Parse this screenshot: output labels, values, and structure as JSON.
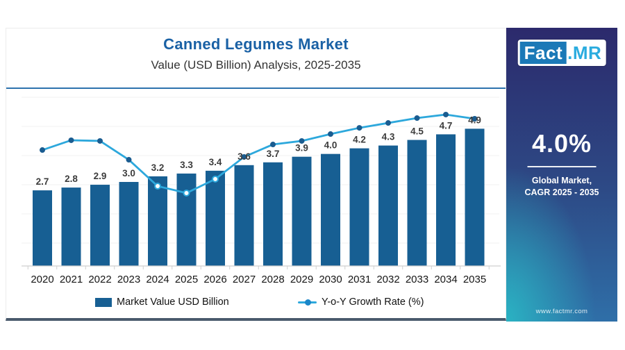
{
  "header": {
    "title": "Canned Legumes Market",
    "subtitle": "Value (USD Billion) Analysis, 2025-2035"
  },
  "chart_data": {
    "type": "bar",
    "combo": "bar + line",
    "title": "Canned Legumes Market",
    "subtitle": "Value (USD Billion) Analysis, 2025-2035",
    "categories": [
      "2020",
      "2021",
      "2022",
      "2023",
      "2024",
      "2025",
      "2026",
      "2027",
      "2028",
      "2029",
      "2030",
      "2031",
      "2032",
      "2033",
      "2034",
      "2035"
    ],
    "series": [
      {
        "name": "Market Value USD Billion",
        "type": "bar",
        "color": "#175f93",
        "values": [
          2.7,
          2.8,
          2.9,
          3.0,
          3.2,
          3.3,
          3.4,
          3.6,
          3.7,
          3.9,
          4.0,
          4.2,
          4.3,
          4.5,
          4.7,
          4.9
        ]
      },
      {
        "name": "Y-o-Y Growth Rate (%)",
        "type": "line",
        "color": "#2da8dc",
        "marker_color": "#1a5c90",
        "values_labeled_on_chart": false,
        "levels_pct_of_plot_height": [
          69,
          74.8,
          74.4,
          63.2,
          47.5,
          43.4,
          51.7,
          64.9,
          72.3,
          74.4,
          78.5,
          82.2,
          85.1,
          88.0,
          90.1,
          87.6
        ],
        "open_marker_indices": [
          4,
          5,
          6
        ]
      }
    ],
    "xlabel": "",
    "ylabel": "",
    "ylim": [
      0,
      6
    ],
    "grid": "faint horizontal gridlines",
    "legend_position": "bottom",
    "bar_value_labels": "one decimal, above each bar"
  },
  "side_panel": {
    "logo": {
      "fact": "Fact",
      "dot_mr": ".MR"
    },
    "cagr_value": "4.0%",
    "cagr_caption_line1": "Global Market,",
    "cagr_caption_line2": "CAGR 2025 - 2035",
    "website": "www.factmr.com"
  },
  "colors": {
    "title_blue": "#1a61a5",
    "bar_blue": "#175f93",
    "line_light_blue": "#2da8dc",
    "marker_dark_blue": "#1a5c90",
    "divider_blue": "#2d72ad",
    "card_bottom_border": "#4a5a6c",
    "panel_top": "#2c2a6c",
    "panel_bottom_left": "#2ab6c4",
    "panel_bottom_right": "#2f6fa8"
  }
}
